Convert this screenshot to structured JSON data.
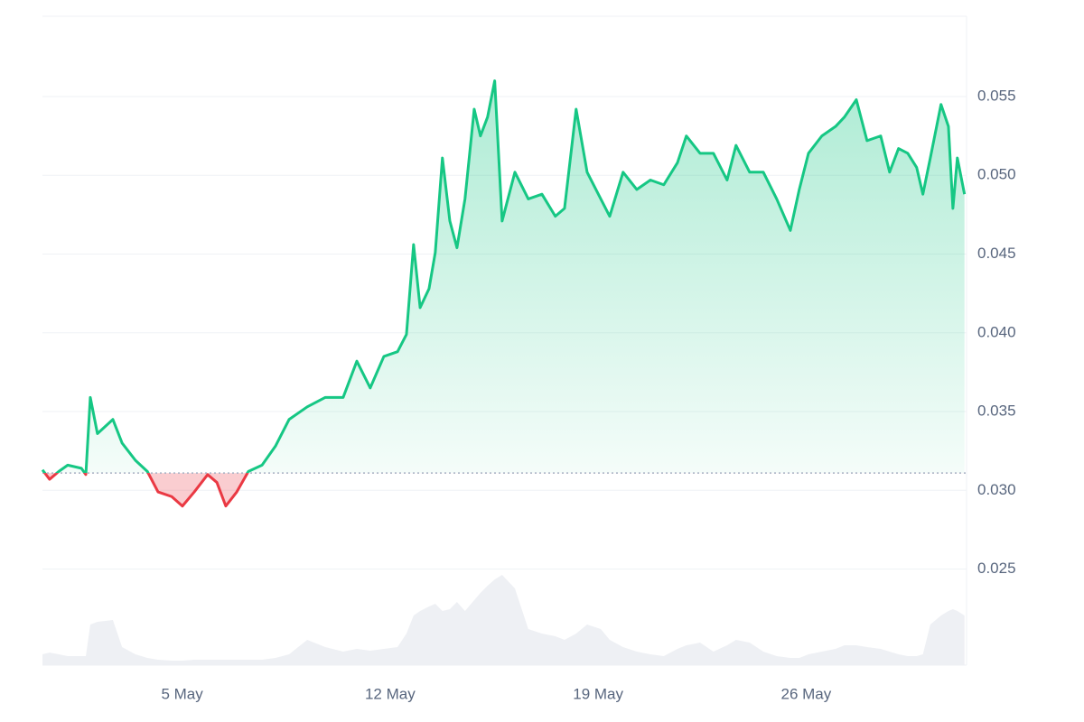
{
  "chart_data": {
    "type": "price-line",
    "x": [
      0.3,
      0.54,
      0.85,
      1.15,
      1.61,
      1.76,
      1.91,
      2.15,
      2.67,
      2.98,
      3.43,
      3.83,
      4.19,
      4.65,
      5.01,
      5.41,
      5.86,
      6.17,
      6.47,
      6.84,
      7.23,
      7.69,
      8.14,
      8.6,
      9.21,
      9.82,
      10.42,
      10.88,
      11.33,
      11.79,
      12.25,
      12.55,
      12.79,
      13.01,
      13.31,
      13.52,
      13.76,
      14.01,
      14.25,
      14.52,
      14.83,
      15.04,
      15.28,
      15.52,
      15.77,
      16.2,
      16.65,
      17.11,
      17.56,
      17.87,
      18.26,
      18.63,
      19.09,
      19.39,
      19.84,
      20.3,
      20.76,
      21.21,
      21.67,
      21.97,
      22.43,
      22.88,
      23.34,
      23.64,
      24.1,
      24.56,
      25.01,
      25.47,
      25.77,
      26.08,
      26.53,
      26.99,
      27.29,
      27.69,
      28.05,
      28.51,
      28.81,
      29.11,
      29.42,
      29.72,
      29.93,
      30.18,
      30.54,
      30.79,
      30.94,
      31.09,
      31.33
    ],
    "values": [
      0.0313,
      0.0307,
      0.0312,
      0.0316,
      0.0314,
      0.031,
      0.0359,
      0.0336,
      0.0345,
      0.033,
      0.0319,
      0.0312,
      0.0299,
      0.0296,
      0.029,
      0.0299,
      0.031,
      0.0305,
      0.029,
      0.0299,
      0.0312,
      0.0316,
      0.0328,
      0.0345,
      0.0353,
      0.0359,
      0.0359,
      0.0382,
      0.0365,
      0.0385,
      0.0388,
      0.0399,
      0.0456,
      0.0416,
      0.0428,
      0.0451,
      0.0511,
      0.0471,
      0.0454,
      0.0485,
      0.0542,
      0.0525,
      0.0537,
      0.056,
      0.0471,
      0.0502,
      0.0485,
      0.0488,
      0.0474,
      0.0479,
      0.0542,
      0.0502,
      0.0485,
      0.0474,
      0.0502,
      0.0491,
      0.0497,
      0.0494,
      0.0508,
      0.0525,
      0.0514,
      0.0514,
      0.0497,
      0.0519,
      0.0502,
      0.0502,
      0.0485,
      0.0465,
      0.0491,
      0.0514,
      0.0525,
      0.0531,
      0.0537,
      0.0548,
      0.0522,
      0.0525,
      0.0502,
      0.0517,
      0.0514,
      0.0505,
      0.0488,
      0.0511,
      0.0545,
      0.0531,
      0.0479,
      0.0511,
      0.0488
    ],
    "volume": [
      12,
      14,
      12,
      10,
      10,
      10,
      45,
      48,
      50,
      20,
      12,
      8,
      6,
      5,
      5,
      6,
      6,
      6,
      6,
      6,
      6,
      6,
      8,
      12,
      28,
      20,
      15,
      18,
      16,
      18,
      20,
      35,
      55,
      60,
      65,
      68,
      60,
      62,
      70,
      60,
      72,
      80,
      88,
      95,
      100,
      85,
      40,
      35,
      32,
      28,
      35,
      45,
      40,
      28,
      20,
      15,
      12,
      10,
      18,
      22,
      25,
      15,
      22,
      28,
      25,
      15,
      10,
      8,
      8,
      12,
      15,
      18,
      22,
      22,
      20,
      18,
      15,
      12,
      10,
      10,
      12,
      45,
      55,
      60,
      62,
      60,
      55
    ],
    "volume_lim": [
      0,
      100
    ],
    "baseline": 0.0311,
    "up_color": "#16c784",
    "down_color": "#ea3943",
    "volume_color": "#eef0f4",
    "xlim": [
      0.3,
      31.4
    ],
    "xticks": [
      {
        "value": 5,
        "label": "5 May"
      },
      {
        "value": 12,
        "label": "12 May"
      },
      {
        "value": 19,
        "label": "19 May"
      },
      {
        "value": 26,
        "label": "26 May"
      }
    ],
    "ylim": [
      0.0189,
      0.0601
    ],
    "yticks": [
      0.025,
      {
        "value": 0.03,
        "label": "0.030"
      },
      0.035,
      {
        "value": 0.04,
        "label": "0.040"
      },
      0.045,
      {
        "value": 0.05,
        "label": "0.050"
      },
      0.055
    ],
    "grid": true
  }
}
